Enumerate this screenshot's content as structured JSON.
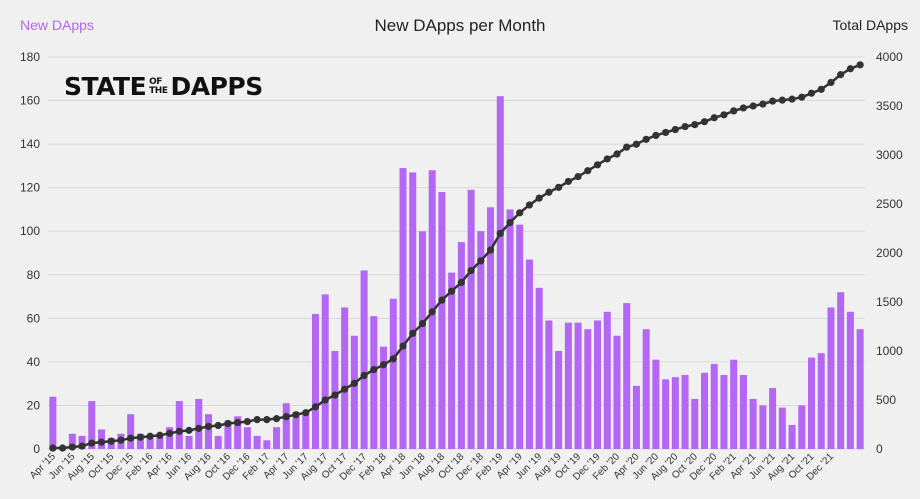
{
  "header": {
    "left_title": "New DApps",
    "center_title": "New DApps per Month",
    "right_title": "Total DApps"
  },
  "brand": {
    "part1": "STATE",
    "part2_top": "OF",
    "part2_bottom": "THE",
    "part3": "DAPPS"
  },
  "colors": {
    "bar": "#b466f5",
    "line": "#333333",
    "grid": "#d8d8d8",
    "background": "#f0f0f0"
  },
  "chart_data": {
    "type": "bar",
    "title": "New DApps per Month",
    "y_left_label": "New DApps",
    "y_right_label": "Total DApps",
    "y_left_lim": [
      0,
      180
    ],
    "y_right_lim": [
      0,
      4000
    ],
    "y_left_ticks": [
      0,
      20,
      40,
      60,
      80,
      100,
      120,
      140,
      160,
      180
    ],
    "y_right_ticks": [
      0,
      500,
      1000,
      1500,
      2000,
      2500,
      3000,
      3500,
      4000
    ],
    "grid": true,
    "x_tick_labels": [
      "Apr '15",
      "Jun '15",
      "Aug '15",
      "Oct '15",
      "Dec '15",
      "Feb '16",
      "Apr '16",
      "Jun '16",
      "Aug '16",
      "Oct '16",
      "Dec '16",
      "Feb '17",
      "Apr '17",
      "Jun '17",
      "Aug '17",
      "Oct '17",
      "Dec '17",
      "Feb '18",
      "Apr '18",
      "Jun '18",
      "Aug '18",
      "Oct '18",
      "Dec '18",
      "Feb '19",
      "Apr '19",
      "Jun '19",
      "Aug '19",
      "Oct '19",
      "Dec '19",
      "Feb '20",
      "Apr '20",
      "Jun '20",
      "Aug '20",
      "Oct '20",
      "Dec '20",
      "Feb '21",
      "Apr '21",
      "Jun '21",
      "Aug '21",
      "Oct '21",
      "Dec '21"
    ],
    "series": [
      {
        "name": "New DApps",
        "type": "bar",
        "axis": "left",
        "values": [
          24,
          0,
          7,
          6,
          22,
          9,
          5,
          7,
          16,
          7,
          5,
          7,
          10,
          22,
          6,
          23,
          16,
          6,
          13,
          15,
          10,
          6,
          4,
          10,
          21,
          17,
          16,
          62,
          71,
          45,
          65,
          52,
          82,
          61,
          47,
          69,
          129,
          127,
          100,
          128,
          118,
          81,
          95,
          119,
          100,
          111,
          162,
          110,
          103,
          87,
          74,
          59,
          45,
          58,
          58,
          55,
          59,
          63,
          52,
          67,
          29,
          55,
          41,
          32,
          33,
          34,
          23,
          35,
          39,
          34,
          41,
          34,
          23,
          20,
          28,
          19,
          11,
          20,
          42,
          44,
          65,
          72,
          63,
          55
        ]
      },
      {
        "name": "Total DApps",
        "type": "line",
        "axis": "right",
        "values": [
          10,
          10,
          20,
          30,
          60,
          70,
          80,
          90,
          110,
          120,
          130,
          140,
          160,
          180,
          190,
          210,
          230,
          240,
          260,
          270,
          280,
          300,
          300,
          310,
          330,
          350,
          370,
          430,
          500,
          550,
          610,
          670,
          750,
          810,
          860,
          920,
          1050,
          1180,
          1280,
          1400,
          1520,
          1610,
          1700,
          1820,
          1920,
          2030,
          2200,
          2310,
          2410,
          2490,
          2560,
          2620,
          2670,
          2730,
          2780,
          2840,
          2900,
          2960,
          3010,
          3080,
          3110,
          3160,
          3200,
          3230,
          3260,
          3290,
          3310,
          3340,
          3380,
          3410,
          3450,
          3480,
          3500,
          3520,
          3550,
          3560,
          3570,
          3590,
          3630,
          3670,
          3740,
          3820,
          3880,
          3920
        ]
      }
    ]
  }
}
